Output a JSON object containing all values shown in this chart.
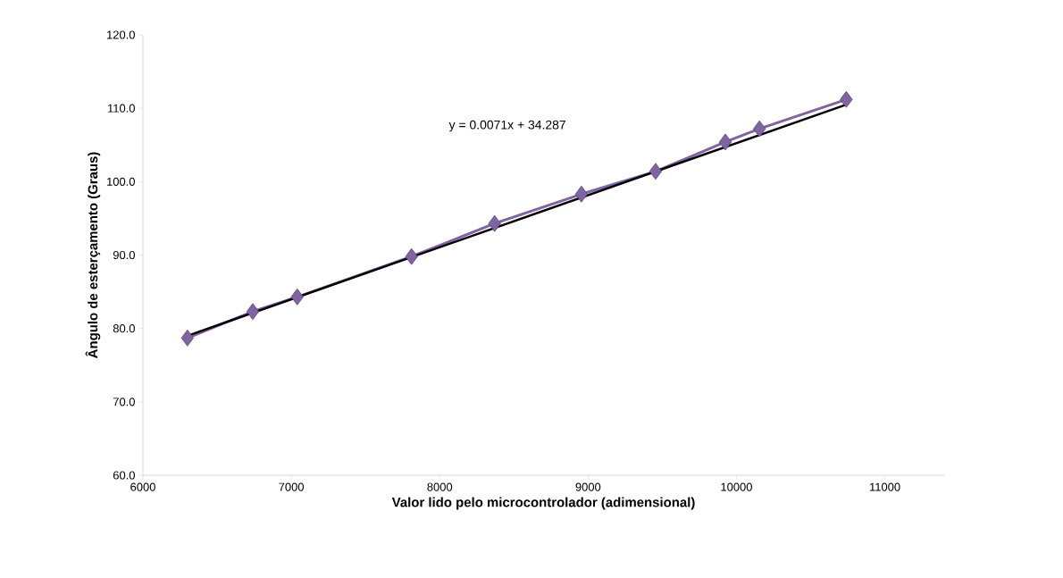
{
  "chart_data": {
    "type": "line",
    "xlabel": "Valor lido pelo microcontrolador (adimensional)",
    "ylabel": "Ângulo de esterçamento (Graus)",
    "x": [
      6300,
      6740,
      7040,
      7810,
      8370,
      8955,
      9455,
      9925,
      10155,
      10740
    ],
    "series": [
      {
        "color": "#8064a2",
        "values": [
          78.7,
          82.3,
          84.3,
          89.8,
          94.3,
          98.3,
          101.4,
          105.4,
          107.2,
          111.2
        ],
        "marker": "diamond"
      },
      {
        "type": "line",
        "color": "#000000",
        "x": [
          6300,
          10740
        ],
        "values": [
          79.0,
          110.5
        ],
        "marker": "none"
      }
    ],
    "xlim": [
      6000,
      11400
    ],
    "ylim": [
      60,
      120
    ],
    "xticks": [
      6000,
      7000,
      8000,
      9000,
      10000,
      11000
    ],
    "yticks": [
      {
        "value": 60,
        "label": "60.0"
      },
      {
        "value": 70,
        "label": "70.0"
      },
      {
        "value": 80,
        "label": "80.0"
      },
      {
        "value": 90,
        "label": "90.0"
      },
      {
        "value": 100,
        "label": "100.0"
      },
      {
        "value": 110,
        "label": "110.0"
      },
      {
        "value": 120,
        "label": "120.0"
      }
    ],
    "annotations": [
      "y = 0.0071x + 34.287"
    ],
    "grid": false
  }
}
